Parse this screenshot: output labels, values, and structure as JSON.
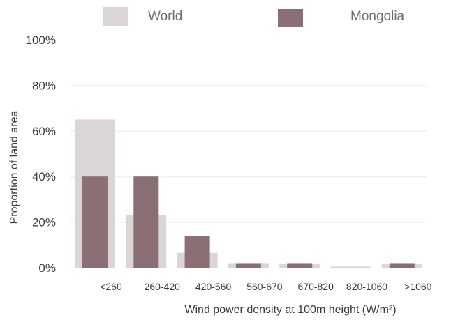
{
  "chart_data": {
    "type": "bar",
    "xlabel": "Wind power density at 100m height (W/m²)",
    "ylabel": "Proportion of land area",
    "ylim": [
      0,
      100
    ],
    "yticks": [
      "0%",
      "20%",
      "40%",
      "60%",
      "80%",
      "100%"
    ],
    "categories": [
      "<260",
      "260-420",
      "420-560",
      "560-670",
      "670-820",
      "820-1060",
      ">1060"
    ],
    "grid": true,
    "legend_position": "top",
    "series": [
      {
        "name": "World",
        "color": "#dcd5d6",
        "values": [
          65,
          23,
          6.5,
          2,
          1.5,
          0.5,
          1.5
        ]
      },
      {
        "name": "Mongolia",
        "color": "#8a7074",
        "values": [
          40,
          40,
          14,
          2,
          2,
          0,
          2
        ]
      }
    ]
  }
}
